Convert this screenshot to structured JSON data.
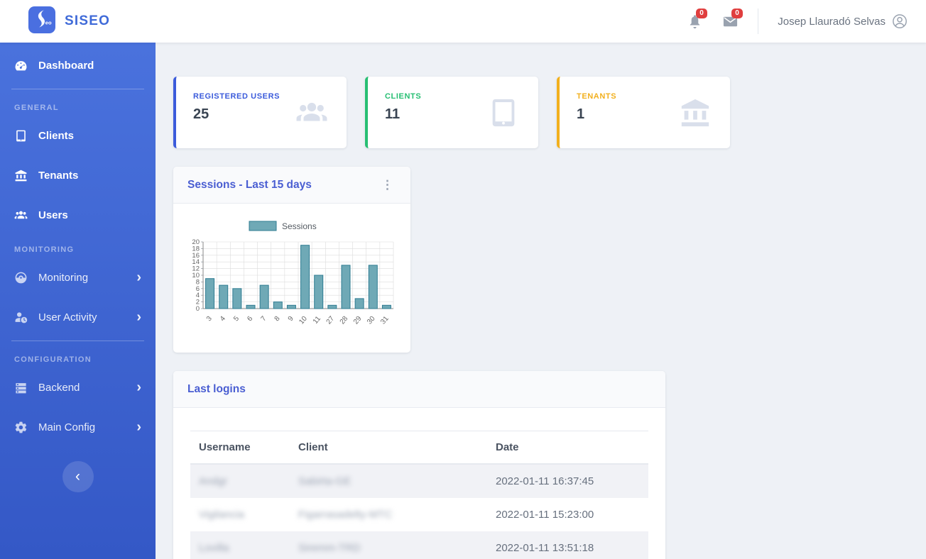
{
  "header": {
    "brand": "SISEO",
    "bell_badge": "0",
    "mail_badge": "0",
    "user_name": "Josep Llauradó Selvas"
  },
  "icons": {
    "chevron_right": "›",
    "collapse": "‹",
    "kebab": "⋮"
  },
  "sidebar": {
    "sections": [
      {
        "heading": "",
        "items": [
          {
            "label": "Dashboard",
            "icon": "gauge-icon",
            "active": true
          }
        ]
      },
      {
        "heading": "GENERAL",
        "items": [
          {
            "label": "Clients",
            "icon": "tablet-icon"
          },
          {
            "label": "Tenants",
            "icon": "bank-icon"
          },
          {
            "label": "Users",
            "icon": "users-icon"
          }
        ]
      },
      {
        "heading": "MONITORING",
        "items": [
          {
            "label": "Monitoring",
            "icon": "monitor-gauge-icon",
            "has_submenu": true
          },
          {
            "label": "User Activity",
            "icon": "user-clock-icon",
            "has_submenu": true
          }
        ]
      },
      {
        "heading": "CONFIGURATION",
        "items": [
          {
            "label": "Backend",
            "icon": "server-icon",
            "has_submenu": true
          },
          {
            "label": "Main Config",
            "icon": "gear-icon",
            "has_submenu": true
          }
        ]
      }
    ]
  },
  "cards": [
    {
      "label": "REGISTERED USERS",
      "value": "25",
      "icon": "users-icon",
      "accent": "#3b5bdb"
    },
    {
      "label": "CLIENTS",
      "value": "11",
      "icon": "tablet-icon",
      "accent": "#27bf73"
    },
    {
      "label": "TENANTS",
      "value": "1",
      "icon": "bank-icon",
      "accent": "#f2b01e"
    }
  ],
  "chart_data": {
    "type": "bar",
    "title": "Sessions - Last 15 days",
    "categories": [
      "3",
      "4",
      "5",
      "6",
      "7",
      "8",
      "9",
      "10",
      "11",
      "27",
      "28",
      "29",
      "30",
      "31"
    ],
    "series": [
      {
        "name": "Sessions",
        "values": [
          9,
          7,
          6,
          1,
          7,
          2,
          1,
          19,
          10,
          1,
          13,
          3,
          13,
          1
        ]
      }
    ],
    "xlabel": "",
    "ylabel": "",
    "ylim": [
      0,
      20
    ],
    "ytick_step": 2,
    "grid": true,
    "legend_position": "top",
    "bar_fill": "#6fa9b6",
    "bar_stroke": "#2f7c92"
  },
  "main": {
    "sessions_card": {
      "title": "Sessions - Last 15 days"
    },
    "last_logins": {
      "title": "Last logins",
      "columns": [
        "Username",
        "Client",
        "Date"
      ],
      "rows": [
        {
          "username": "Andgr",
          "client": "Sabirta-GE",
          "date": "2022-01-11 16:37:45",
          "redacted": true
        },
        {
          "username": "Vigilancia",
          "client": "Figarrasadelty-MTC",
          "date": "2022-01-11 15:23:00",
          "redacted": true
        },
        {
          "username": "Lovilla",
          "client": "Siremm-TRD",
          "date": "2022-01-11 13:51:18",
          "redacted": true
        }
      ]
    }
  },
  "colors": {
    "sidebar_gradient_top": "#4a72dd",
    "sidebar_gradient_bottom": "#3458c6",
    "brand_blue": "#3f6ad8",
    "panel_title_blue": "#4a5ed2",
    "badge_red": "#e03e3e",
    "stat_value": "#394452",
    "accent_blue": "#3b5bdb",
    "accent_green": "#27bf73",
    "accent_orange": "#f2b01e",
    "bar_fill": "#6fa9b6",
    "bar_stroke": "#2f7c92"
  }
}
